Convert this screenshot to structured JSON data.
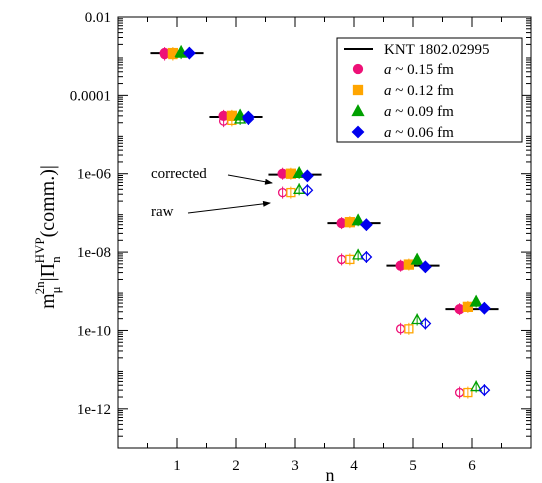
{
  "chart_data": {
    "type": "scatter",
    "title": "",
    "xlabel": "n",
    "ylabel_main": "m",
    "ylabel_main_sup": "2n",
    "ylabel_main_sub": "μ",
    "ylabel_pi": "|Π",
    "ylabel_pi_sup": "HVP",
    "ylabel_pi_sub": "n",
    "ylabel_tail": "(comm.)|",
    "y_scale": "log",
    "xlim": [
      0,
      7
    ],
    "ylim": [
      1e-13,
      0.01
    ],
    "x_ticks": [
      1,
      2,
      3,
      4,
      5,
      6
    ],
    "x_tick_labels": [
      "1",
      "2",
      "3",
      "4",
      "5",
      "6"
    ],
    "y_ticks": [
      1e-12,
      1e-10,
      1e-08,
      1e-06,
      0.0001,
      0.01
    ],
    "y_tick_labels": [
      "1e-12",
      "1e-10",
      "1e-08",
      "1e-06",
      "0.0001",
      "0.01"
    ],
    "grid": false,
    "legend_position": "top-right",
    "reference": {
      "name": "KNT 1802.02995",
      "color": "#000000",
      "segments": [
        {
          "n": 1,
          "value": 0.0012
        },
        {
          "n": 2,
          "value": 2.8e-05
        },
        {
          "n": 3,
          "value": 9.5e-07
        },
        {
          "n": 4,
          "value": 5.5e-08
        },
        {
          "n": 5,
          "value": 4.5e-09
        },
        {
          "n": 6,
          "value": 3.5e-10
        }
      ]
    },
    "series": [
      {
        "name": "a ~ 0.15 fm",
        "a_symbol": "a",
        "a_rest": " ~ 0.15 fm",
        "color": "#ee1177",
        "marker": "circle",
        "corrected": [
          0.0012,
          3e-05,
          1e-06,
          5.5e-08,
          4.5e-09,
          3.5e-10
        ],
        "raw": [
          0.0011,
          2.2e-05,
          3.3e-07,
          6.5e-09,
          1.1e-10,
          2.6e-12
        ]
      },
      {
        "name": "a ~ 0.12 fm",
        "a_symbol": "a",
        "a_rest": " ~ 0.12 fm",
        "color": "#ffa500",
        "marker": "square",
        "corrected": [
          0.0012,
          3e-05,
          1e-06,
          5.8e-08,
          4.8e-09,
          4e-10
        ],
        "raw": [
          0.0011,
          2.3e-05,
          3.3e-07,
          6.5e-09,
          1.1e-10,
          2.6e-12
        ]
      },
      {
        "name": "a ~ 0.09 fm",
        "a_symbol": "a",
        "a_rest": " ~ 0.09 fm",
        "color": "#00a000",
        "marker": "triangle",
        "corrected": [
          0.0013,
          3.1e-05,
          1.05e-06,
          6.5e-08,
          6.5e-09,
          5.5e-10
        ],
        "raw": [
          0.0012,
          2.5e-05,
          4e-07,
          8.5e-09,
          1.9e-10,
          3.7e-12
        ]
      },
      {
        "name": "a ~ 0.06 fm",
        "a_symbol": "a",
        "a_rest": " ~ 0.06 fm",
        "color": "#0000ee",
        "marker": "diamond",
        "corrected": [
          0.0012,
          2.8e-05,
          8.8e-07,
          5e-08,
          4.2e-09,
          3.7e-10
        ],
        "raw": [
          0.0012,
          2.5e-05,
          3.8e-07,
          7.5e-09,
          1.5e-10,
          3e-12
        ]
      }
    ],
    "annotations": [
      {
        "text": "corrected",
        "points_to": {
          "n": 2.9,
          "value": 9.5e-07
        }
      },
      {
        "text": "raw",
        "points_to": {
          "n": 2.8,
          "value": 3.4e-07
        }
      }
    ]
  }
}
